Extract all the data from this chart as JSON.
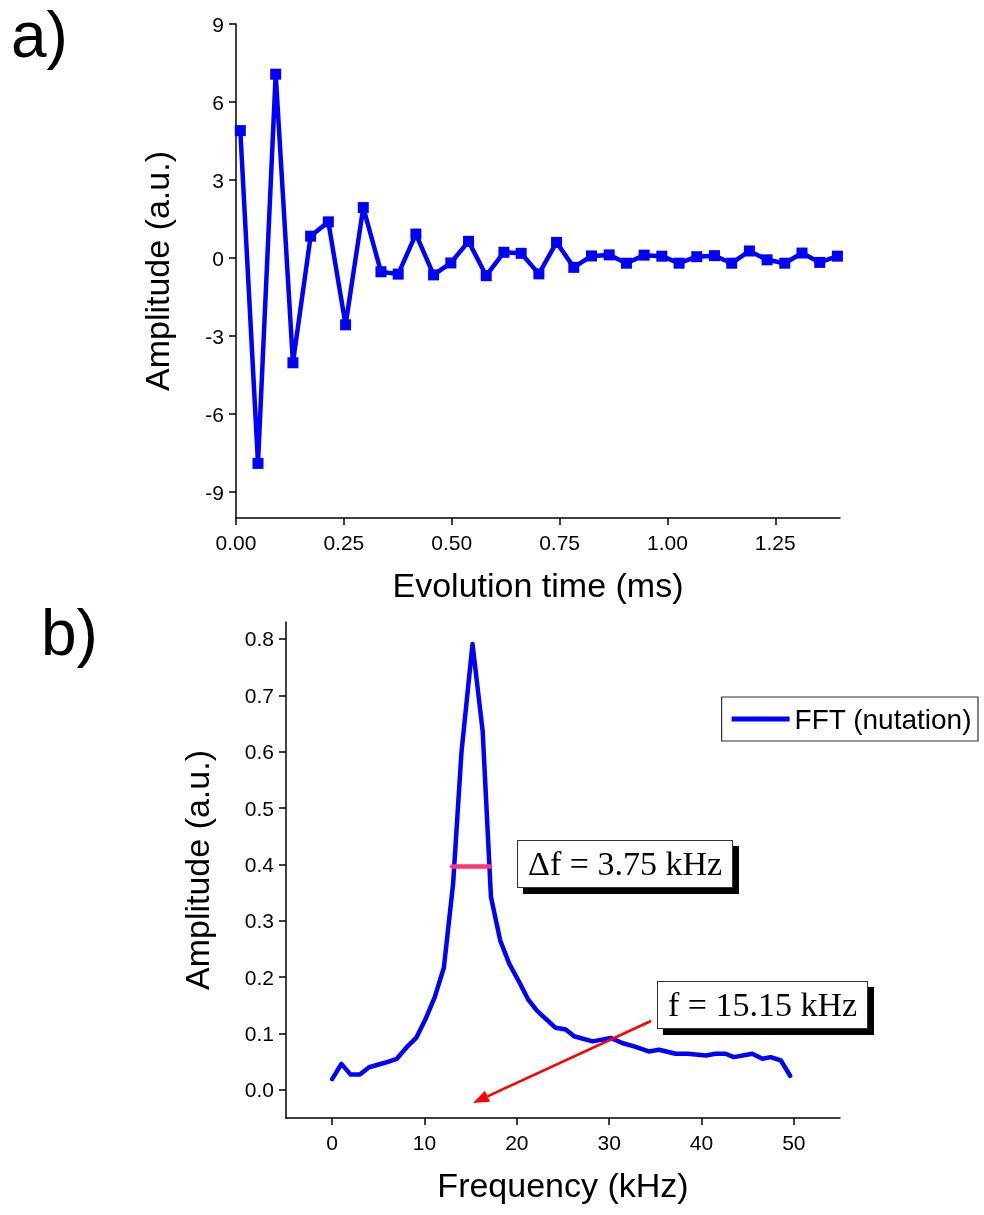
{
  "chart_data": [
    {
      "type": "line",
      "title": "a)",
      "xlabel": "Evolution time (ms)",
      "ylabel": "Amplitude (a.u.)",
      "x": [
        0.01,
        0.051,
        0.092,
        0.132,
        0.173,
        0.214,
        0.254,
        0.295,
        0.336,
        0.376,
        0.417,
        0.458,
        0.498,
        0.539,
        0.58,
        0.621,
        0.661,
        0.702,
        0.743,
        0.783,
        0.824,
        0.865,
        0.905,
        0.946,
        0.987,
        1.027,
        1.068,
        1.109,
        1.149,
        1.19,
        1.231,
        1.272,
        1.312,
        1.353,
        1.394
      ],
      "series": [
        {
          "color": "#0000ff",
          "values": [
            4.9,
            -7.9,
            7.07,
            -4.03,
            0.84,
            1.39,
            -2.57,
            1.94,
            -0.53,
            -0.62,
            0.92,
            -0.65,
            -0.19,
            0.64,
            -0.68,
            0.22,
            0.18,
            -0.61,
            0.6,
            -0.36,
            0.08,
            0.12,
            -0.2,
            0.11,
            0.07,
            -0.2,
            0.05,
            0.09,
            -0.2,
            0.27,
            -0.07,
            -0.2,
            0.19,
            -0.17,
            0.07
          ]
        }
      ],
      "marker": "square",
      "xlim": [
        0,
        1.4
      ],
      "ylim": [
        -10,
        9
      ],
      "xticks": [
        {
          "value": 0,
          "label": "0.00"
        },
        0.25,
        {
          "value": 0.5,
          "label": "0.50"
        },
        0.75,
        {
          "value": 1,
          "label": "1.00"
        },
        1.25
      ],
      "yticks": [
        -9,
        -6,
        -3,
        0,
        3,
        6,
        9
      ]
    },
    {
      "type": "line",
      "title": "b)",
      "xlabel": "Frequency (kHz)",
      "ylabel": "Amplitude (a.u.)",
      "series": [
        {
          "name": "FFT (nutation)",
          "color": "#0000ff",
          "x": [
            0,
            1,
            2,
            3,
            4,
            5.7,
            7,
            8.1,
            9.1,
            10.1,
            11.1,
            12.1,
            13.1,
            14,
            15.2,
            16.3,
            17.2,
            18.2,
            19.2,
            20.3,
            21.2,
            22.2,
            24.2,
            25.3,
            26.2,
            28.2,
            30.2,
            31.4,
            32.7,
            34.3,
            35.4,
            37.2,
            38.5,
            40.5,
            41.5,
            42.6,
            43.5,
            45.5,
            46.6,
            47.5,
            48.6,
            49.6
          ],
          "values": [
            0.019,
            0.046,
            0.027,
            0.027,
            0.04,
            0.048,
            0.055,
            0.076,
            0.092,
            0.125,
            0.164,
            0.217,
            0.366,
            0.598,
            0.791,
            0.636,
            0.342,
            0.265,
            0.223,
            0.19,
            0.161,
            0.14,
            0.11,
            0.107,
            0.095,
            0.086,
            0.092,
            0.083,
            0.077,
            0.068,
            0.071,
            0.064,
            0.064,
            0.061,
            0.064,
            0.064,
            0.058,
            0.064,
            0.055,
            0.058,
            0.052,
            0.025
          ]
        },
        {
          "color": "#ff3377",
          "x": [
            13,
            17.1
          ],
          "values": [
            0.396,
            0.396
          ]
        }
      ],
      "marker": "none",
      "legend": "top right",
      "xlim": [
        -5,
        55
      ],
      "ylim": [
        -0.05,
        0.83
      ],
      "xticks": [
        0,
        10,
        20,
        30,
        40,
        50
      ],
      "yticks": [
        {
          "value": 0,
          "label": "0.0"
        },
        0.1,
        0.2,
        0.3,
        0.4,
        0.5,
        0.6,
        0.7,
        0.8
      ],
      "annotations": [
        {
          "text": "Δf = 3.75 kHz",
          "x": 17.1,
          "y": 0.396
        },
        "f = 15.15 kHz"
      ]
    }
  ]
}
